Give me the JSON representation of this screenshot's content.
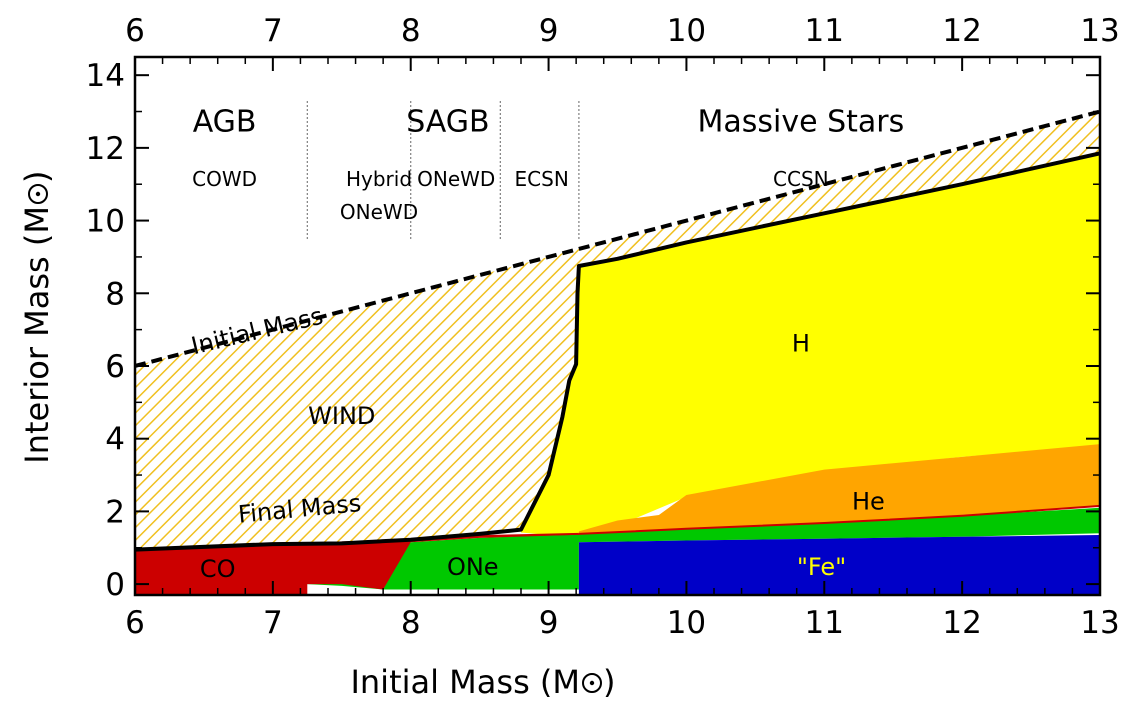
{
  "chart_data": {
    "type": "area",
    "xlabel": "Initial Mass (M",
    "ylabel": "Interior Mass (M",
    "unit_suffix": ")",
    "xlim": [
      6,
      13
    ],
    "ylim": [
      -0.3,
      14.5
    ],
    "x_ticks": [
      6,
      7,
      8,
      9,
      10,
      11,
      12,
      13
    ],
    "y_ticks": [
      0,
      2,
      4,
      6,
      8,
      10,
      12,
      14
    ],
    "grid": false,
    "regions": [
      {
        "label": "AGB",
        "x": 6.65,
        "y": 12.45
      },
      {
        "label": "SAGB",
        "x": 8.27,
        "y": 12.45
      },
      {
        "label": "Massive Stars",
        "x": 10.83,
        "y": 12.45
      }
    ],
    "fates": [
      {
        "label": "COWD",
        "x": 6.65,
        "y": 10.95
      },
      {
        "label": "Hybrid",
        "x": 7.77,
        "y": 10.95
      },
      {
        "label": "ONeWD",
        "x": 7.77,
        "y": 10.05
      },
      {
        "label": "ONeWD",
        "x": 8.33,
        "y": 10.95
      },
      {
        "label": "ECSN",
        "x": 8.95,
        "y": 10.95
      },
      {
        "label": "CCSN",
        "x": 10.83,
        "y": 10.95
      }
    ],
    "boundaries": [
      7.25,
      8.0,
      8.65,
      9.22
    ],
    "boundary_range": [
      9.5,
      13.3
    ],
    "curves": [
      {
        "name": "Initial Mass",
        "label": "Initial Mass",
        "style": "dashed",
        "label_x": 6.9,
        "label_y": 6.75,
        "x": [
          6,
          13
        ],
        "y": [
          6,
          13
        ]
      },
      {
        "name": "Final Mass",
        "label": "Final Mass",
        "style": "solid",
        "label_x": 7.2,
        "label_y": 1.85,
        "x": [
          6,
          7.0,
          7.5,
          8.0,
          8.5,
          8.8,
          9.0,
          9.1,
          9.15,
          9.2,
          9.21,
          9.22,
          9.5,
          10,
          11,
          12,
          13
        ],
        "y": [
          0.95,
          1.1,
          1.12,
          1.22,
          1.38,
          1.5,
          3.0,
          4.6,
          5.6,
          6.05,
          8.0,
          8.75,
          8.95,
          9.4,
          10.2,
          11.0,
          11.85
        ]
      }
    ],
    "layers": [
      {
        "name": "H",
        "color": "#ffff00",
        "label_x": 10.83,
        "label_y": 6.4,
        "x": [
          8.8,
          9.0,
          9.1,
          9.15,
          9.2,
          9.21,
          9.22,
          9.5,
          10,
          11,
          12,
          13,
          13,
          12,
          11,
          10,
          9.5,
          9.22,
          9.0,
          8.8
        ],
        "y": [
          1.5,
          3.0,
          4.6,
          5.6,
          6.05,
          8.0,
          8.75,
          8.95,
          9.4,
          10.2,
          11.0,
          11.85,
          3.8,
          3.5,
          3.1,
          2.4,
          1.6,
          1.3,
          1.35,
          1.42
        ]
      },
      {
        "name": "He",
        "color": "#ffa500",
        "label_x": 11.32,
        "label_y": 2.05,
        "x": [
          9.22,
          9.5,
          9.8,
          10.0,
          11.0,
          12.0,
          13.0,
          13.0,
          12.0,
          11.0,
          10.0,
          9.22
        ],
        "y": [
          1.45,
          1.75,
          1.9,
          2.45,
          3.15,
          3.5,
          3.85,
          2.15,
          1.9,
          1.65,
          1.5,
          1.38
        ]
      },
      {
        "name": "ONe",
        "color": "#00c800",
        "label_x": 8.45,
        "label_y": 0.25,
        "x": [
          7.25,
          7.5,
          8.0,
          8.5,
          9.22,
          10.0,
          11.0,
          12.0,
          13.0,
          13.0,
          12.0,
          11.0,
          10.0,
          9.22,
          9.22,
          8.6,
          8.2,
          7.8,
          7.5,
          7.25
        ],
        "y": [
          1.05,
          1.08,
          1.15,
          1.27,
          1.38,
          1.52,
          1.68,
          1.88,
          2.1,
          1.4,
          1.3,
          1.25,
          1.2,
          1.15,
          -0.15,
          -0.15,
          -0.15,
          -0.15,
          -0.05,
          0.0
        ]
      },
      {
        "name": "CO",
        "color": "#cc0000",
        "label_x": 6.6,
        "label_y": 0.2,
        "x": [
          6.0,
          7.0,
          7.25,
          7.5,
          8.0,
          8.5,
          9.22,
          9.22,
          8.5,
          8.0,
          7.8,
          7.5,
          7.25,
          7.25,
          6.0
        ],
        "y": [
          0.95,
          1.1,
          1.12,
          1.1,
          1.2,
          1.32,
          1.38,
          1.36,
          1.27,
          1.15,
          -0.15,
          0.0,
          0.0,
          -0.3,
          -0.3
        ]
      },
      {
        "name": "\"Fe\"",
        "color": "#0000c8",
        "text_color": "#ffff00",
        "label_x": 10.98,
        "label_y": 0.25,
        "x": [
          9.22,
          10.0,
          11.0,
          12.0,
          13.0,
          13.0,
          9.22
        ],
        "y": [
          1.15,
          1.2,
          1.25,
          1.3,
          1.35,
          -0.3,
          -0.3
        ]
      }
    ],
    "wind_region": {
      "name": "WIND",
      "color": "#f0c020",
      "label_x": 7.5,
      "label_y": 4.4
    }
  }
}
